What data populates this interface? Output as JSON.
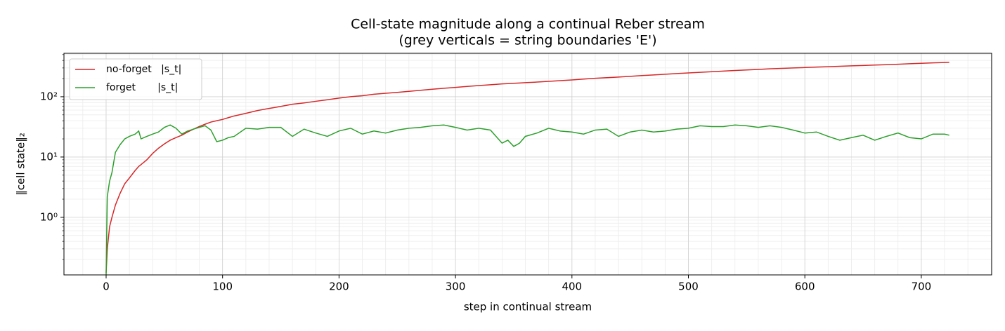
{
  "chart_data": {
    "type": "line",
    "title": "Cell-state magnitude along a continual Reber stream",
    "subtitle": "(grey verticals = string boundaries 'E')",
    "x_label": "step in continual stream",
    "y_label": "‖cell state‖₂",
    "log_y": true,
    "grid": true,
    "minor_grid": true,
    "legend": "upper left",
    "xlim": [
      -36.2,
      760.4
    ],
    "xticks": [
      0,
      100,
      200,
      300,
      400,
      500,
      600,
      700
    ],
    "ylim": [
      0.111,
      525
    ],
    "yticks": [
      {
        "value": 1,
        "label": "10⁰"
      },
      {
        "value": 10,
        "label": "10¹"
      },
      {
        "value": 100,
        "label": "10²"
      }
    ],
    "x": [
      0,
      1,
      3,
      5,
      8,
      12,
      16,
      20,
      25,
      28,
      30,
      35,
      40,
      45,
      50,
      55,
      60,
      65,
      70,
      75,
      80,
      85,
      90,
      95,
      100,
      105,
      110,
      120,
      130,
      140,
      150,
      160,
      170,
      180,
      190,
      200,
      210,
      220,
      230,
      240,
      250,
      260,
      270,
      280,
      290,
      300,
      310,
      320,
      330,
      340,
      345,
      350,
      355,
      360,
      370,
      380,
      390,
      400,
      410,
      420,
      430,
      440,
      450,
      460,
      470,
      480,
      490,
      500,
      510,
      520,
      530,
      540,
      550,
      560,
      570,
      580,
      590,
      600,
      610,
      620,
      630,
      640,
      650,
      660,
      670,
      680,
      690,
      700,
      710,
      720,
      724
    ],
    "series": [
      {
        "name": "no-forget   |s_t|",
        "color": "#d62728",
        "values": [
          0.12,
          0.3,
          0.7,
          1.0,
          1.6,
          2.5,
          3.6,
          4.5,
          6,
          7,
          7.5,
          9,
          11.5,
          14,
          16.5,
          19,
          21,
          23,
          26,
          29,
          32,
          35,
          38,
          40,
          42,
          45,
          48,
          53,
          59,
          64,
          69,
          75,
          79,
          84,
          89,
          95,
          100,
          104,
          110,
          114,
          118,
          123,
          128,
          133,
          138,
          143,
          148,
          153,
          158,
          163,
          165,
          167,
          169,
          171,
          175,
          180,
          185,
          190,
          196,
          202,
          207,
          212,
          218,
          224,
          230,
          236,
          242,
          248,
          254,
          260,
          266,
          272,
          278,
          284,
          290,
          295,
          300,
          305,
          310,
          315,
          320,
          325,
          330,
          335,
          340,
          346,
          352,
          358,
          364,
          370,
          372
        ]
      },
      {
        "name": "forget       |s_t|",
        "color": "#2ca02c",
        "values": [
          0.11,
          2.2,
          4,
          5.5,
          12,
          16,
          20,
          22,
          24,
          27,
          20,
          22,
          24,
          26,
          31,
          34,
          30,
          24,
          27,
          29,
          31,
          33,
          28,
          18,
          19,
          21,
          22,
          30,
          29,
          31,
          31,
          22,
          29,
          25,
          22,
          27,
          30,
          24,
          27,
          25,
          28,
          30,
          31,
          33,
          34,
          31,
          28,
          30,
          28,
          17,
          19,
          15,
          17,
          22,
          25,
          30,
          27,
          26,
          24,
          28,
          29,
          22,
          26,
          28,
          26,
          27,
          29,
          30,
          33,
          32,
          32,
          34,
          33,
          31,
          33,
          31,
          28,
          25,
          26,
          22,
          19,
          21,
          23,
          19,
          22,
          25,
          21,
          20,
          24,
          24,
          23
        ]
      }
    ]
  }
}
